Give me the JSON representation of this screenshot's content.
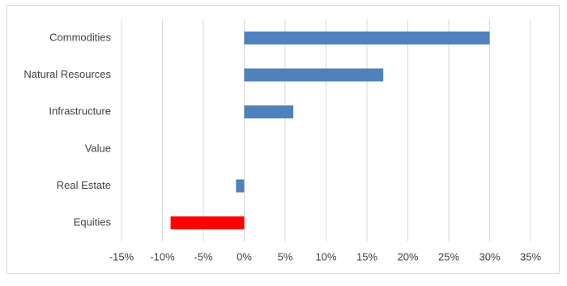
{
  "chart_data": {
    "type": "hbar",
    "categories": [
      "Commodities",
      "Natural Resources",
      "Infrastructure",
      "Value",
      "Real Estate",
      "Equities"
    ],
    "values": [
      30,
      17,
      6,
      0,
      -1,
      -9
    ],
    "colors": [
      "#4f81bd",
      "#4f81bd",
      "#4f81bd",
      "#4f81bd",
      "#4f81bd",
      "#ff0000"
    ],
    "xlim": [
      -15,
      35
    ],
    "xticks": [
      {
        "value": -15,
        "label": "-15%"
      },
      {
        "value": -10,
        "label": "-10%"
      },
      {
        "value": -5,
        "label": "-5%"
      },
      {
        "value": 0,
        "label": "0%"
      },
      {
        "value": 5,
        "label": "5%"
      },
      {
        "value": 10,
        "label": "10%"
      },
      {
        "value": 15,
        "label": "15%"
      },
      {
        "value": 20,
        "label": "20%"
      },
      {
        "value": 25,
        "label": "25%"
      },
      {
        "value": 30,
        "label": "30%"
      },
      {
        "value": 35,
        "label": "35%"
      }
    ],
    "grid": true
  }
}
